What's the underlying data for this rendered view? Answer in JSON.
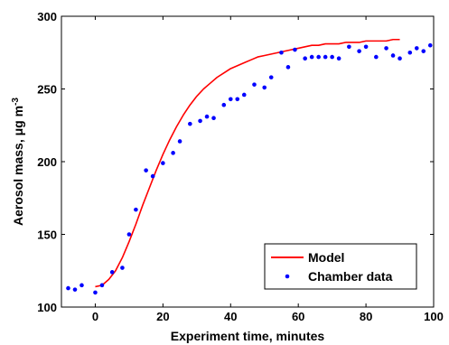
{
  "chart_data": {
    "type": "line",
    "xlabel": "Experiment time, minutes",
    "ylabel": "Aerosol mass, μg m⁻³",
    "ylabel_parts": {
      "prefix": "Aerosol mass, ",
      "mu": "μ",
      "unit": "g m",
      "exponent": "-3"
    },
    "xlim": [
      -10,
      100
    ],
    "ylim": [
      100,
      300
    ],
    "xticks": [
      0,
      20,
      40,
      60,
      80,
      100
    ],
    "yticks": [
      100,
      150,
      200,
      250,
      300
    ],
    "grid": false,
    "legend_position": "bottom-right",
    "series": [
      {
        "name": "Model",
        "style": "line",
        "color": "#ff0000",
        "x": [
          0,
          2,
          4,
          6,
          8,
          10,
          12,
          14,
          16,
          18,
          20,
          22,
          24,
          26,
          28,
          30,
          32,
          34,
          36,
          38,
          40,
          42,
          44,
          46,
          48,
          50,
          52,
          54,
          56,
          58,
          60,
          62,
          64,
          66,
          68,
          70,
          72,
          74,
          76,
          78,
          80,
          82,
          84,
          86,
          88,
          90
        ],
        "y": [
          114,
          115,
          119,
          125,
          134,
          145,
          157,
          170,
          182,
          194,
          205,
          215,
          224,
          232,
          239,
          245,
          250,
          254,
          258,
          261,
          264,
          266,
          268,
          270,
          272,
          273,
          274,
          275,
          276,
          277,
          278,
          279,
          280,
          280,
          281,
          281,
          281,
          282,
          282,
          282,
          283,
          283,
          283,
          283,
          284,
          284
        ]
      },
      {
        "name": "Chamber data",
        "style": "dots",
        "color": "#0000ff",
        "x": [
          -8,
          -6,
          -4,
          0,
          2,
          5,
          8,
          10,
          12,
          15,
          17,
          20,
          23,
          25,
          28,
          31,
          33,
          35,
          38,
          40,
          42,
          44,
          47,
          50,
          52,
          55,
          57,
          59,
          62,
          64,
          66,
          68,
          70,
          72,
          75,
          78,
          80,
          83,
          86,
          88,
          90,
          93,
          95,
          97,
          99
        ],
        "y": [
          113,
          112,
          115,
          110,
          115,
          124,
          127,
          150,
          167,
          194,
          190,
          199,
          206,
          214,
          226,
          228,
          231,
          230,
          239,
          243,
          243,
          246,
          253,
          251,
          258,
          275,
          265,
          277,
          271,
          272,
          272,
          272,
          272,
          271,
          279,
          276,
          279,
          272,
          278,
          273,
          271,
          275,
          278,
          276,
          280
        ]
      }
    ]
  }
}
